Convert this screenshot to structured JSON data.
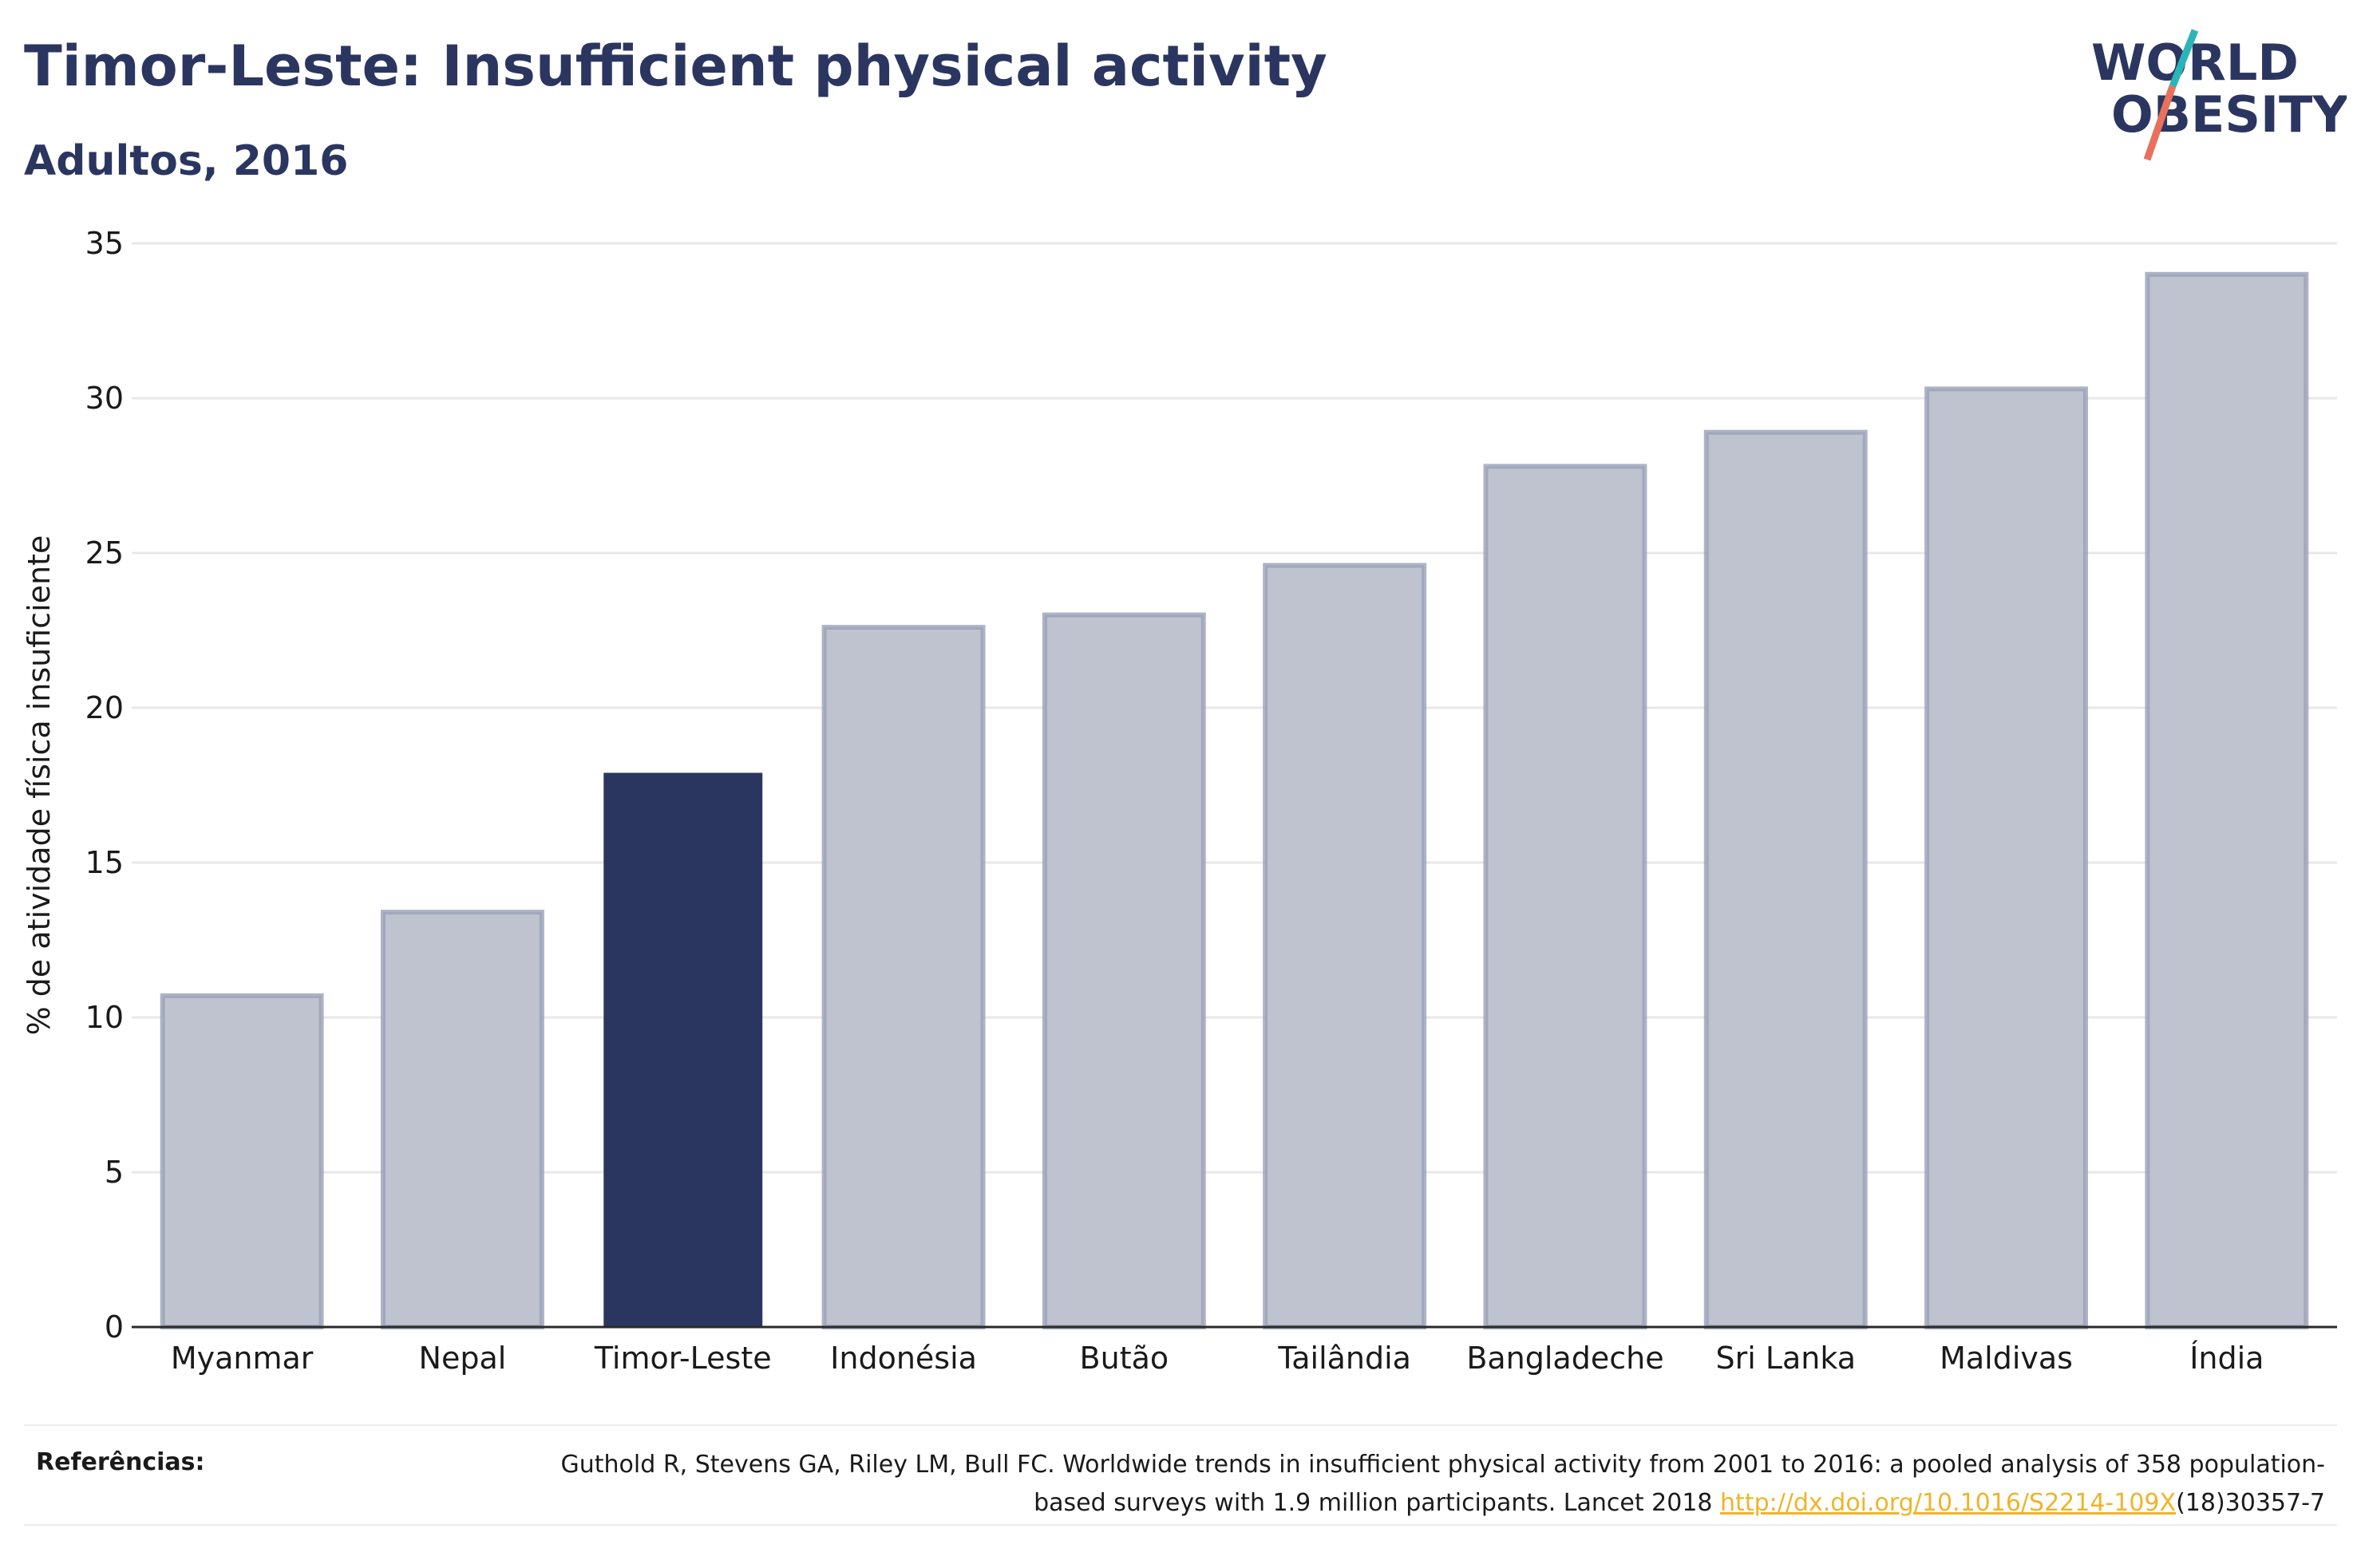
{
  "title": "Timor-Leste: Insufficient physical activity",
  "subtitle": "Adultos, 2016",
  "logo": {
    "line1": "WORLD",
    "line2": "OBESITY"
  },
  "colors": {
    "highlight": "#2b3660",
    "bar": "#bfc3cf",
    "bar_border": "#9aa0b6",
    "grid": "#e8e8e8",
    "link": "#f0b429",
    "logo_teal": "#2bb5b8",
    "logo_red": "#e8705c"
  },
  "chart_data": {
    "type": "bar",
    "ylabel": "% de atividade física insuficiente",
    "xlabel": "",
    "ylim": [
      0,
      35
    ],
    "yticks": [
      0,
      5,
      10,
      15,
      20,
      25,
      30,
      35
    ],
    "categories": [
      "Myanmar",
      "Nepal",
      "Timor-Leste",
      "Indonésia",
      "Butão",
      "Tailândia",
      "Bangladeche",
      "Sri Lanka",
      "Maldivas",
      "Índia"
    ],
    "values": [
      10.7,
      13.4,
      17.9,
      22.6,
      23.0,
      24.6,
      27.8,
      28.9,
      30.3,
      34.0
    ],
    "highlight": "Timor-Leste",
    "grid": true
  },
  "references": {
    "label": "Referências:",
    "text_before": "Guthold R, Stevens GA, Riley LM, Bull FC. Worldwide trends in insufficient physical activity from 2001 to 2016: a pooled analysis of 358 population-based surveys with 1.9 million participants. Lancet 2018 ",
    "link": "http://dx.doi.org/10.1016/S2214-109X",
    "text_after": "(18)30357-7"
  }
}
